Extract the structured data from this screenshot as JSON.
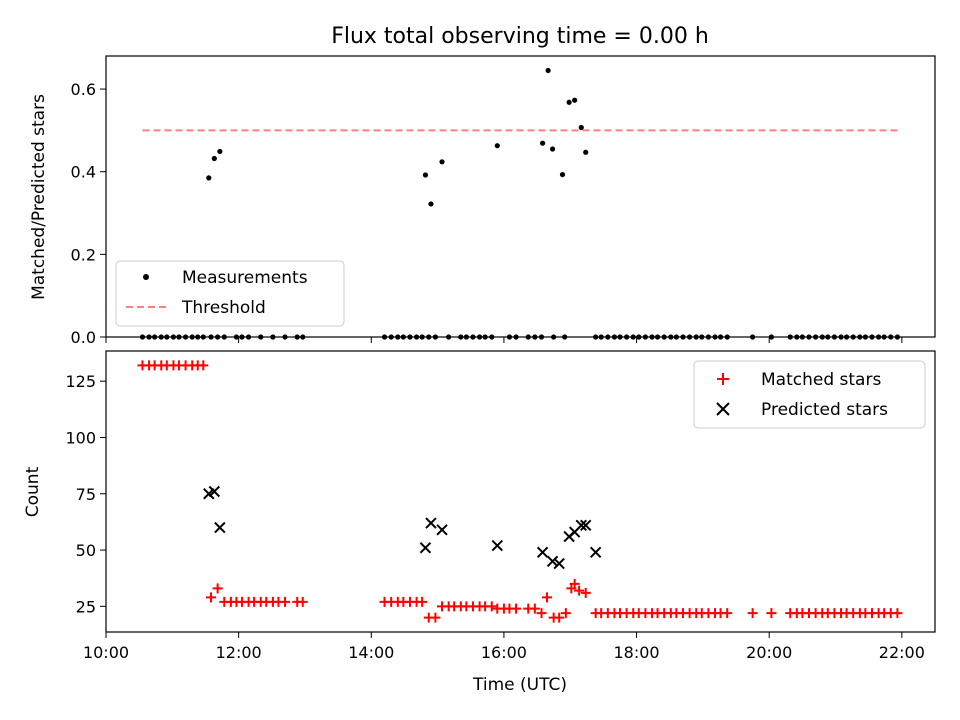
{
  "chart_data": [
    {
      "type": "scatter",
      "title": "Flux total observing time = 0.00 h",
      "ylabel": "Matched/Predicted stars",
      "xlabel": "",
      "xlim": [
        "10:00",
        "22:30"
      ],
      "ylim": [
        0,
        0.68
      ],
      "xticks": [
        "10:00",
        "12:00",
        "14:00",
        "16:00",
        "18:00",
        "20:00",
        "22:00"
      ],
      "yticks": [
        0.0,
        0.2,
        0.4,
        0.6
      ],
      "ytick_labels": [
        "0.0",
        "0.2",
        "0.4",
        "0.6"
      ],
      "legend_position": "lower-left",
      "series": [
        {
          "name": "Measurements",
          "marker": "dot",
          "color": "#000000",
          "x": [
            "10:33",
            "10:39",
            "10:44",
            "10:50",
            "10:55",
            "11:01",
            "11:06",
            "11:12",
            "11:18",
            "11:23",
            "11:28",
            "11:35",
            "11:41",
            "11:47",
            "11:58",
            "12:03",
            "12:09",
            "12:20",
            "12:31",
            "12:42",
            "12:53",
            "12:58",
            "14:12",
            "14:18",
            "14:24",
            "14:29",
            "14:35",
            "14:41",
            "14:46",
            "14:52",
            "14:58",
            "15:10",
            "15:21",
            "15:26",
            "15:32",
            "15:38",
            "15:43",
            "15:49",
            "16:05",
            "16:11",
            "16:22",
            "16:28",
            "16:34",
            "16:45",
            "17:23",
            "17:28",
            "17:34",
            "17:40",
            "17:45",
            "17:51",
            "17:57",
            "18:02",
            "18:08",
            "18:14",
            "18:19",
            "18:25",
            "18:31",
            "18:36",
            "18:42",
            "18:48",
            "18:54",
            "18:59",
            "19:05",
            "19:11",
            "19:16",
            "19:22",
            "19:45",
            "20:02",
            "20:19",
            "20:25",
            "20:30",
            "20:36",
            "20:42",
            "20:48",
            "20:53",
            "20:59",
            "21:05",
            "21:10",
            "21:16",
            "21:22",
            "21:27",
            "21:33",
            "21:39",
            "21:44",
            "21:50",
            "21:56",
            "11:33",
            "11:38",
            "11:43",
            "14:49",
            "14:54",
            "15:04",
            "15:54",
            "16:35",
            "16:44",
            "16:53",
            "16:59",
            "17:04",
            "17:10",
            "17:14",
            "16:40",
            "16:55"
          ],
          "y": [
            0,
            0,
            0,
            0,
            0,
            0,
            0,
            0,
            0,
            0,
            0,
            0,
            0,
            0,
            0,
            0,
            0,
            0,
            0,
            0,
            0,
            0,
            0,
            0,
            0,
            0,
            0,
            0,
            0,
            0,
            0,
            0,
            0,
            0,
            0,
            0,
            0,
            0,
            0,
            0,
            0,
            0,
            0,
            0,
            0,
            0,
            0,
            0,
            0,
            0,
            0,
            0,
            0,
            0,
            0,
            0,
            0,
            0,
            0,
            0,
            0,
            0,
            0,
            0,
            0,
            0,
            0,
            0,
            0,
            0,
            0,
            0,
            0,
            0,
            0,
            0,
            0,
            0,
            0,
            0,
            0,
            0,
            0,
            0,
            0,
            0,
            0.385,
            0.432,
            0.449,
            0.392,
            0.322,
            0.424,
            0.463,
            0.469,
            0.455,
            0.393,
            0.568,
            0.573,
            0.507,
            0.447,
            0.645,
            0
          ]
        },
        {
          "name": "Threshold",
          "line_style": "dashed",
          "color": "#ff7f7f",
          "x": [
            "10:33",
            "21:56"
          ],
          "y": [
            0.5,
            0.5
          ]
        }
      ]
    },
    {
      "type": "scatter",
      "title": "",
      "xlabel": "Time (UTC)",
      "ylabel": "Count",
      "xlim": [
        "10:00",
        "22:30"
      ],
      "ylim": [
        13.6,
        138.4
      ],
      "xticks": [
        "10:00",
        "12:00",
        "14:00",
        "16:00",
        "18:00",
        "20:00",
        "22:00"
      ],
      "yticks": [
        25,
        50,
        75,
        100,
        125
      ],
      "ytick_labels": [
        "25",
        "50",
        "75",
        "100",
        "125"
      ],
      "legend_position": "upper-right",
      "series": [
        {
          "name": "Matched stars",
          "marker": "plus",
          "color": "#ff0000",
          "x": [
            "10:33",
            "10:39",
            "10:44",
            "10:50",
            "10:55",
            "11:01",
            "11:06",
            "11:12",
            "11:18",
            "11:23",
            "11:28",
            "11:35",
            "11:41",
            "11:47",
            "11:53",
            "11:58",
            "12:03",
            "12:09",
            "12:14",
            "12:20",
            "12:25",
            "12:31",
            "12:36",
            "12:42",
            "12:53",
            "12:58",
            "14:12",
            "14:18",
            "14:24",
            "14:29",
            "14:35",
            "14:41",
            "14:46",
            "14:52",
            "14:58",
            "15:04",
            "15:10",
            "15:15",
            "15:21",
            "15:26",
            "15:32",
            "15:38",
            "15:43",
            "15:49",
            "15:54",
            "16:00",
            "16:05",
            "16:11",
            "16:22",
            "16:28",
            "16:34",
            "16:39",
            "16:45",
            "16:50",
            "16:56",
            "17:01",
            "17:04",
            "17:08",
            "17:14",
            "17:23",
            "17:28",
            "17:34",
            "17:40",
            "17:45",
            "17:51",
            "17:57",
            "18:02",
            "18:08",
            "18:14",
            "18:19",
            "18:25",
            "18:31",
            "18:36",
            "18:42",
            "18:48",
            "18:54",
            "18:59",
            "19:05",
            "19:11",
            "19:16",
            "19:22",
            "19:45",
            "20:02",
            "20:19",
            "20:25",
            "20:30",
            "20:36",
            "20:42",
            "20:48",
            "20:53",
            "20:59",
            "21:05",
            "21:10",
            "21:16",
            "21:22",
            "21:27",
            "21:33",
            "21:39",
            "21:44",
            "21:50",
            "21:56"
          ],
          "y": [
            132,
            132,
            132,
            132,
            132,
            132,
            132,
            132,
            132,
            132,
            132,
            29,
            33,
            27,
            27,
            27,
            27,
            27,
            27,
            27,
            27,
            27,
            27,
            27,
            27,
            27,
            27,
            27,
            27,
            27,
            27,
            27,
            27,
            20,
            20,
            25,
            25,
            25,
            25,
            25,
            25,
            25,
            25,
            25,
            24,
            24,
            24,
            24,
            24,
            24,
            22,
            29,
            20,
            20,
            22,
            33,
            35,
            32,
            31,
            22,
            22,
            22,
            22,
            22,
            22,
            22,
            22,
            22,
            22,
            22,
            22,
            22,
            22,
            22,
            22,
            22,
            22,
            22,
            22,
            22,
            22,
            22,
            22,
            22,
            22,
            22,
            22,
            22,
            22,
            22,
            22,
            22,
            22,
            22,
            22,
            22,
            22,
            22,
            22,
            22,
            22
          ]
        },
        {
          "name": "Predicted stars",
          "marker": "x",
          "color": "#000000",
          "x": [
            "11:33",
            "11:38",
            "11:43",
            "14:49",
            "14:54",
            "15:04",
            "15:54",
            "16:35",
            "16:44",
            "16:50",
            "16:59",
            "17:04",
            "17:10",
            "17:14",
            "17:23"
          ],
          "y": [
            75,
            76,
            60,
            51,
            62,
            59,
            52,
            49,
            45,
            44,
            56,
            58,
            61,
            61,
            49
          ]
        }
      ]
    }
  ]
}
